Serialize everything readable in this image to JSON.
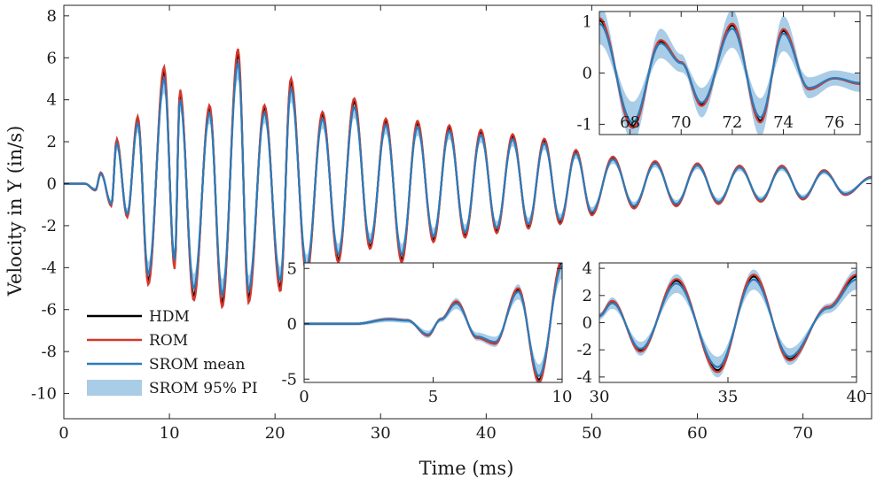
{
  "chart_data": {
    "type": "line",
    "xlabel": "Time (ms)",
    "ylabel": "Velocity in Y (in/s)",
    "xlim": [
      0,
      76.5
    ],
    "ylim": [
      -11.2,
      8.5
    ],
    "xticks": [
      0,
      10,
      20,
      30,
      40,
      50,
      60,
      70
    ],
    "yticks": [
      8,
      6,
      4,
      2,
      0,
      -2,
      -4,
      -6,
      -8,
      -10
    ],
    "ytick_labels": [
      "8",
      "6",
      "4",
      "2",
      "0",
      "-2",
      "-4",
      "-6",
      "-8",
      "-10"
    ],
    "legend": {
      "position": "bottom-left",
      "entries": [
        "HDM",
        "ROM",
        "SROM mean",
        "SROM 95% PI"
      ]
    },
    "colors": {
      "HDM": "#000000",
      "ROM": "#d7372b",
      "SROM mean": "#2b7bb9",
      "SROM 95% PI": "#a9cce7"
    },
    "main_envelope": {
      "description": "decaying oscillation sampled at peaks",
      "t": [
        0,
        2,
        3,
        3.5,
        4.5,
        5,
        6,
        7,
        8,
        9.5,
        10.5,
        11,
        12.3,
        13.8,
        15,
        16.5,
        17.5,
        19,
        20.5,
        21.5,
        23,
        24.5,
        26,
        27.5,
        29,
        30.5,
        32,
        33.5,
        35,
        36.5,
        38,
        39.5,
        41,
        42.5,
        44,
        45.5,
        47,
        48.5,
        50,
        52,
        54,
        56,
        58,
        60,
        62,
        64,
        66,
        68,
        70,
        72,
        74,
        76.5
      ],
      "v": [
        0,
        0,
        -0.3,
        0.5,
        -1.0,
        2.0,
        -1.5,
        3.0,
        -4.5,
        5.2,
        -3.8,
        4.2,
        -5.2,
        3.5,
        -5.5,
        6.0,
        -5.3,
        3.5,
        -4.8,
        4.7,
        -4.1,
        3.2,
        -3.5,
        3.8,
        -2.9,
        2.9,
        -3.5,
        2.8,
        -2.6,
        2.6,
        -2.4,
        2.4,
        -2.2,
        2.2,
        -2.0,
        2.0,
        -1.8,
        1.5,
        -1.4,
        1.2,
        -1.1,
        1.0,
        -1.0,
        0.9,
        -0.9,
        0.8,
        -0.8,
        0.8,
        -0.7,
        0.6,
        -0.5,
        0.3
      ]
    },
    "insets": [
      {
        "name": "top-right",
        "xlim": [
          66.8,
          77
        ],
        "ylim": [
          -1.2,
          1.2
        ],
        "xticks": [
          68,
          70,
          72,
          74,
          76
        ],
        "yticks": [
          1,
          0,
          -1
        ],
        "peaks_t": [
          66.8,
          68.1,
          69.2,
          70.0,
          70.8,
          72.0,
          73.1,
          74.0,
          75.0,
          76.0,
          77.0
        ],
        "peaks_v": [
          1.0,
          -1.0,
          0.6,
          0.2,
          -0.6,
          0.9,
          -0.9,
          0.8,
          -0.3,
          -0.1,
          -0.2
        ]
      },
      {
        "name": "bottom-middle",
        "xlim": [
          0,
          10
        ],
        "ylim": [
          -5.3,
          5.5
        ],
        "xticks": [
          0,
          5,
          10
        ],
        "yticks": [
          5,
          0,
          -5
        ],
        "peaks_t": [
          0,
          2.0,
          3.3,
          4.0,
          4.8,
          5.3,
          5.9,
          6.7,
          7.4,
          8.3,
          9.1,
          10.0
        ],
        "peaks_v": [
          0,
          0,
          0.4,
          0.3,
          -1.0,
          0.4,
          1.9,
          -1.2,
          -1.7,
          3.0,
          -4.9,
          5.4
        ]
      },
      {
        "name": "bottom-right",
        "xlim": [
          30,
          40
        ],
        "ylim": [
          -4.4,
          4.4
        ],
        "xticks": [
          30,
          35,
          40
        ],
        "yticks": [
          4,
          2,
          0,
          -2,
          -4
        ],
        "peaks_t": [
          30,
          30.5,
          31.6,
          33.0,
          34.6,
          36.0,
          37.4,
          38.9,
          40.0
        ],
        "peaks_v": [
          0.5,
          1.5,
          -2.0,
          3.0,
          -3.4,
          3.3,
          -2.6,
          1.1,
          3.3
        ]
      }
    ]
  }
}
